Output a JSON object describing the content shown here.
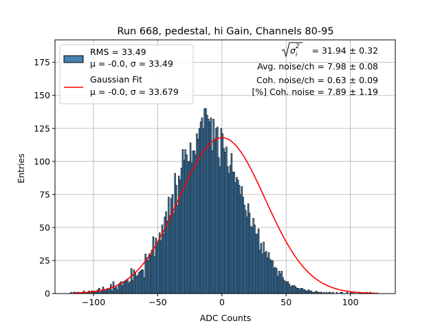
{
  "chart_data": {
    "type": "bar",
    "title": "Run 668, pedestal, hi Gain, Channels 80-95",
    "xlabel": "ADC Counts",
    "ylabel": "Entries",
    "xlim": [
      -130,
      135
    ],
    "ylim": [
      0,
      192
    ],
    "xticks": [
      -100,
      -50,
      0,
      50,
      100
    ],
    "xtick_labels": [
      "−100",
      "−50",
      "0",
      "50",
      "100"
    ],
    "yticks": [
      0,
      25,
      50,
      75,
      100,
      125,
      150,
      175
    ],
    "ytick_labels": [
      "0",
      "25",
      "50",
      "75",
      "100",
      "125",
      "150",
      "175"
    ],
    "grid": true,
    "bin_width": 1,
    "x_start": -118,
    "values": [
      1,
      0,
      1,
      1,
      0,
      1,
      1,
      0,
      1,
      1,
      2,
      1,
      1,
      1,
      2,
      1,
      2,
      2,
      1,
      2,
      2,
      3,
      4,
      1,
      2,
      5,
      3,
      2,
      3,
      4,
      3,
      7,
      2,
      9,
      4,
      5,
      3,
      7,
      8,
      9,
      6,
      9,
      9,
      10,
      11,
      8,
      9,
      19,
      10,
      18,
      16,
      13,
      14,
      16,
      17,
      18,
      18,
      12,
      30,
      27,
      25,
      30,
      29,
      33,
      43,
      28,
      42,
      38,
      40,
      46,
      40,
      52,
      45,
      58,
      62,
      55,
      73,
      59,
      72,
      75,
      61,
      91,
      82,
      67,
      89,
      86,
      95,
      109,
      101,
      109,
      105,
      100,
      100,
      114,
      99,
      108,
      108,
      105,
      121,
      117,
      125,
      130,
      133,
      125,
      140,
      140,
      135,
      132,
      130,
      133,
      108,
      132,
      117,
      125,
      126,
      103,
      96,
      125,
      121,
      110,
      107,
      111,
      96,
      91,
      97,
      106,
      92,
      92,
      84,
      88,
      86,
      82,
      75,
      81,
      73,
      67,
      63,
      58,
      68,
      61,
      51,
      50,
      57,
      52,
      45,
      45,
      49,
      33,
      38,
      30,
      39,
      31,
      32,
      27,
      31,
      26,
      25,
      25,
      19,
      20,
      19,
      13,
      17,
      15,
      17,
      12,
      10,
      9,
      9,
      9,
      7,
      5,
      6,
      6,
      6,
      5,
      4,
      4,
      3,
      4,
      4,
      3,
      3,
      2,
      2,
      3,
      2,
      2,
      1,
      1,
      1,
      2,
      1,
      1,
      1,
      1,
      0,
      1,
      0,
      1,
      0,
      1,
      1,
      0,
      1,
      0,
      0,
      1,
      0,
      0,
      1,
      1,
      0,
      0,
      0,
      1,
      0,
      0,
      1,
      0,
      1,
      0,
      0,
      0,
      0,
      1,
      0,
      0,
      0,
      0,
      1,
      0,
      0,
      1,
      0,
      0,
      0,
      0,
      0,
      0
    ],
    "fit": {
      "type": "gaussian",
      "mu": -0.0,
      "sigma": 33.679,
      "amplitude": 118,
      "x_range": [
        -115,
        122
      ]
    },
    "legend": {
      "position": "top-left",
      "entries": [
        {
          "kind": "histogram",
          "line1": "RMS = 33.49",
          "line2": "μ = -0.0, σ = 33.49",
          "color": "#4682b4"
        },
        {
          "kind": "line",
          "line1": "Gaussian Fit",
          "line2": "μ = -0.0, σ = 33.679",
          "color": "#ff0000"
        }
      ]
    },
    "annotations": {
      "position": "top-right",
      "sigma_label": "= 31.94 ± 0.32",
      "avg_noise": "Avg. noise/ch = 7.98 ± 0.08",
      "coh_noise": "Coh. noise/ch = 0.63 ± 0.09",
      "pct_coh_noise": "[%] Coh. noise = 7.89 ± 1.19"
    },
    "colors": {
      "bar_fill": "#4682b4",
      "bar_edge": "#000000",
      "fit_line": "#ff0000",
      "grid": "#b0b0b0"
    }
  }
}
